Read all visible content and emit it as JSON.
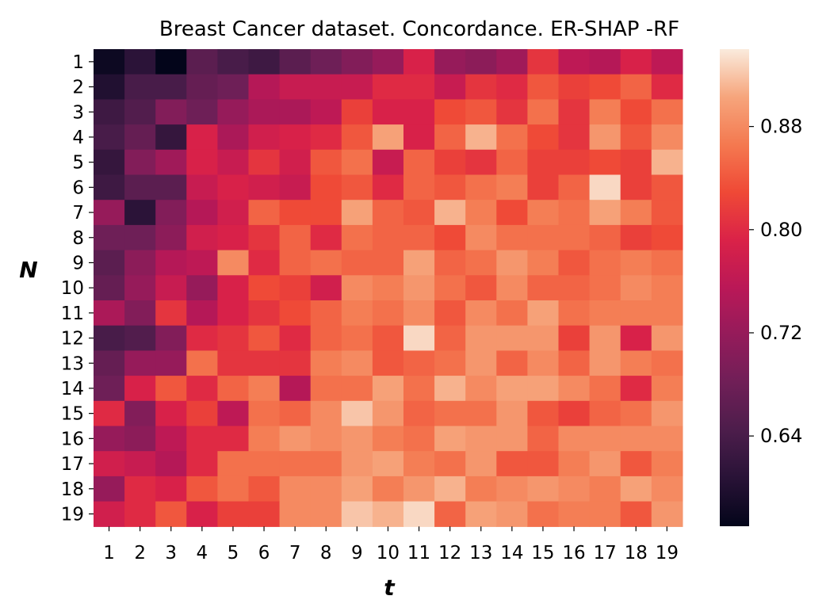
{
  "chart_data": {
    "type": "heatmap",
    "title": "Breast Cancer  dataset. Concordance. ER-SHAP -RF",
    "xlabel": "t",
    "ylabel": "N",
    "x_categories": [
      "1",
      "2",
      "3",
      "4",
      "5",
      "6",
      "7",
      "8",
      "9",
      "10",
      "11",
      "12",
      "13",
      "14",
      "15",
      "16",
      "17",
      "18",
      "19"
    ],
    "y_categories": [
      "1",
      "2",
      "3",
      "4",
      "5",
      "6",
      "7",
      "8",
      "9",
      "10",
      "11",
      "12",
      "13",
      "14",
      "15",
      "16",
      "17",
      "18",
      "19"
    ],
    "values": [
      [
        0.58,
        0.61,
        0.57,
        0.66,
        0.64,
        0.63,
        0.66,
        0.68,
        0.7,
        0.72,
        0.79,
        0.72,
        0.71,
        0.73,
        0.81,
        0.76,
        0.75,
        0.79,
        0.76
      ],
      [
        0.6,
        0.64,
        0.64,
        0.67,
        0.68,
        0.75,
        0.77,
        0.77,
        0.77,
        0.8,
        0.8,
        0.77,
        0.81,
        0.8,
        0.84,
        0.82,
        0.83,
        0.85,
        0.8
      ],
      [
        0.63,
        0.65,
        0.7,
        0.68,
        0.72,
        0.74,
        0.74,
        0.76,
        0.82,
        0.79,
        0.79,
        0.83,
        0.84,
        0.81,
        0.86,
        0.81,
        0.87,
        0.83,
        0.86
      ],
      [
        0.64,
        0.67,
        0.62,
        0.79,
        0.74,
        0.78,
        0.79,
        0.8,
        0.84,
        0.9,
        0.79,
        0.85,
        0.91,
        0.86,
        0.83,
        0.81,
        0.89,
        0.84,
        0.88
      ],
      [
        0.62,
        0.7,
        0.73,
        0.79,
        0.77,
        0.81,
        0.78,
        0.84,
        0.86,
        0.77,
        0.85,
        0.82,
        0.81,
        0.85,
        0.82,
        0.82,
        0.83,
        0.82,
        0.91
      ],
      [
        0.63,
        0.66,
        0.66,
        0.77,
        0.79,
        0.78,
        0.77,
        0.83,
        0.84,
        0.8,
        0.85,
        0.84,
        0.86,
        0.87,
        0.82,
        0.85,
        0.93,
        0.82,
        0.84
      ],
      [
        0.72,
        0.61,
        0.7,
        0.75,
        0.78,
        0.85,
        0.83,
        0.83,
        0.9,
        0.85,
        0.84,
        0.91,
        0.87,
        0.83,
        0.87,
        0.86,
        0.9,
        0.87,
        0.84
      ],
      [
        0.68,
        0.68,
        0.71,
        0.78,
        0.79,
        0.81,
        0.85,
        0.8,
        0.86,
        0.85,
        0.85,
        0.83,
        0.88,
        0.86,
        0.86,
        0.86,
        0.85,
        0.82,
        0.83
      ],
      [
        0.66,
        0.71,
        0.75,
        0.76,
        0.88,
        0.8,
        0.85,
        0.86,
        0.85,
        0.85,
        0.9,
        0.85,
        0.86,
        0.89,
        0.87,
        0.84,
        0.86,
        0.87,
        0.86
      ],
      [
        0.67,
        0.72,
        0.77,
        0.72,
        0.79,
        0.83,
        0.82,
        0.78,
        0.88,
        0.87,
        0.89,
        0.86,
        0.84,
        0.88,
        0.85,
        0.85,
        0.86,
        0.88,
        0.87
      ],
      [
        0.74,
        0.7,
        0.81,
        0.75,
        0.79,
        0.81,
        0.83,
        0.85,
        0.87,
        0.86,
        0.88,
        0.84,
        0.88,
        0.86,
        0.9,
        0.86,
        0.87,
        0.87,
        0.87
      ],
      [
        0.64,
        0.65,
        0.7,
        0.8,
        0.81,
        0.84,
        0.8,
        0.85,
        0.86,
        0.84,
        0.93,
        0.85,
        0.89,
        0.89,
        0.89,
        0.82,
        0.89,
        0.79,
        0.89
      ],
      [
        0.67,
        0.72,
        0.72,
        0.86,
        0.81,
        0.81,
        0.81,
        0.87,
        0.88,
        0.84,
        0.85,
        0.86,
        0.89,
        0.85,
        0.88,
        0.85,
        0.89,
        0.87,
        0.86
      ],
      [
        0.68,
        0.79,
        0.84,
        0.8,
        0.85,
        0.87,
        0.75,
        0.86,
        0.86,
        0.9,
        0.86,
        0.91,
        0.88,
        0.9,
        0.9,
        0.88,
        0.86,
        0.8,
        0.87
      ],
      [
        0.8,
        0.7,
        0.79,
        0.82,
        0.76,
        0.86,
        0.85,
        0.88,
        0.92,
        0.89,
        0.85,
        0.86,
        0.86,
        0.89,
        0.84,
        0.82,
        0.85,
        0.86,
        0.89
      ],
      [
        0.72,
        0.71,
        0.76,
        0.8,
        0.8,
        0.87,
        0.89,
        0.88,
        0.89,
        0.87,
        0.86,
        0.9,
        0.89,
        0.89,
        0.85,
        0.88,
        0.88,
        0.88,
        0.88
      ],
      [
        0.78,
        0.77,
        0.75,
        0.8,
        0.86,
        0.86,
        0.86,
        0.86,
        0.89,
        0.9,
        0.87,
        0.86,
        0.89,
        0.84,
        0.84,
        0.87,
        0.89,
        0.84,
        0.87
      ],
      [
        0.72,
        0.8,
        0.79,
        0.84,
        0.86,
        0.84,
        0.88,
        0.88,
        0.9,
        0.87,
        0.89,
        0.91,
        0.87,
        0.88,
        0.89,
        0.88,
        0.87,
        0.9,
        0.88
      ],
      [
        0.78,
        0.8,
        0.84,
        0.79,
        0.82,
        0.82,
        0.88,
        0.88,
        0.92,
        0.91,
        0.93,
        0.85,
        0.9,
        0.89,
        0.86,
        0.87,
        0.87,
        0.84,
        0.89
      ]
    ],
    "vmin": 0.57,
    "vmax": 0.94,
    "colormap": "rocket",
    "colorbar_ticks": [
      "0.64",
      "0.72",
      "0.80",
      "0.88"
    ],
    "grid": false,
    "legend": "colorbar-right"
  }
}
